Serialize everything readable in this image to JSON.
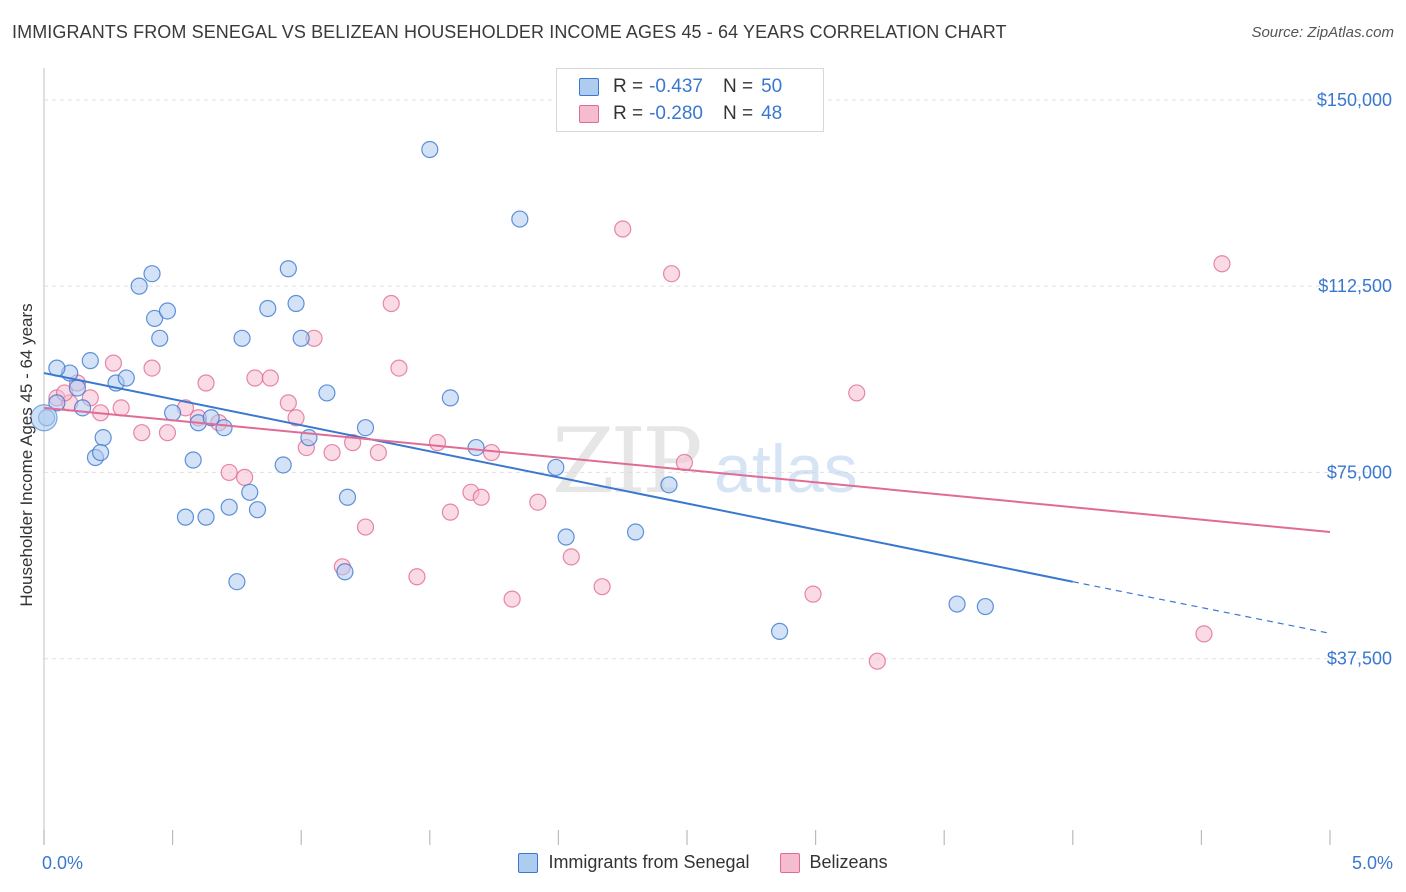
{
  "title": "IMMIGRANTS FROM SENEGAL VS BELIZEAN HOUSEHOLDER INCOME AGES 45 - 64 YEARS CORRELATION CHART",
  "source": "Source: ZipAtlas.com",
  "watermark": {
    "zip": "ZIP",
    "atlas": "atlas"
  },
  "colors": {
    "blue": "#3a78cf",
    "blue_fill": "#aecbf0",
    "pink": "#e06c95",
    "pink_fill": "#f5bcd0",
    "grid": "#e0e0e0",
    "axis_text": "#3a78cf"
  },
  "legend": {
    "r_label": "R =",
    "n_label": "N =",
    "rows": [
      {
        "r": "-0.437",
        "n": "50"
      },
      {
        "r": "-0.280",
        "n": "48"
      }
    ]
  },
  "chart_data": {
    "type": "scatter",
    "xlabel": "",
    "ylabel": "Householder Income Ages 45 - 64 years",
    "x_tick_labels": [
      "0.0%",
      "5.0%"
    ],
    "y_tick_labels": [
      "$150,000",
      "$112,500",
      "$75,000",
      "$37,500"
    ],
    "y_ticks": [
      150000,
      112500,
      75000,
      37500
    ],
    "xlim": [
      0,
      5
    ],
    "ylim": [
      0,
      155000
    ],
    "grid": true,
    "legend_position": "bottom",
    "series": [
      {
        "name": "Immigrants from Senegal",
        "color": "#3a78cf",
        "trend": {
          "x0": 0.0,
          "y0": 95000,
          "x1": 4.0,
          "y1": 53000,
          "dash_to_x": 5.0,
          "dash_to_y": 42600
        },
        "points": [
          [
            0.01,
            86000
          ],
          [
            0.05,
            89000
          ],
          [
            0.1,
            95000
          ],
          [
            0.13,
            92000
          ],
          [
            0.18,
            97500
          ],
          [
            0.2,
            78000
          ],
          [
            0.23,
            82000
          ],
          [
            0.22,
            79000
          ],
          [
            0.28,
            93000
          ],
          [
            0.32,
            94000
          ],
          [
            0.37,
            112500
          ],
          [
            0.42,
            115000
          ],
          [
            0.43,
            106000
          ],
          [
            0.45,
            102000
          ],
          [
            0.48,
            107500
          ],
          [
            0.5,
            87000
          ],
          [
            0.55,
            66000
          ],
          [
            0.58,
            77500
          ],
          [
            0.6,
            85000
          ],
          [
            0.63,
            66000
          ],
          [
            0.65,
            86000
          ],
          [
            0.7,
            84000
          ],
          [
            0.72,
            68000
          ],
          [
            0.75,
            53000
          ],
          [
            0.77,
            102000
          ],
          [
            0.8,
            71000
          ],
          [
            0.83,
            67500
          ],
          [
            0.87,
            108000
          ],
          [
            0.93,
            76500
          ],
          [
            0.95,
            116000
          ],
          [
            0.98,
            109000
          ],
          [
            1.0,
            102000
          ],
          [
            1.03,
            82000
          ],
          [
            1.1,
            91000
          ],
          [
            1.18,
            70000
          ],
          [
            1.25,
            84000
          ],
          [
            1.17,
            55000
          ],
          [
            1.5,
            140000
          ],
          [
            1.58,
            90000
          ],
          [
            1.68,
            80000
          ],
          [
            1.85,
            126000
          ],
          [
            1.99,
            76000
          ],
          [
            2.03,
            62000
          ],
          [
            2.3,
            63000
          ],
          [
            2.43,
            72500
          ],
          [
            2.86,
            43000
          ],
          [
            3.55,
            48500
          ],
          [
            3.66,
            48000
          ],
          [
            0.05,
            96000
          ],
          [
            0.15,
            88000
          ]
        ]
      },
      {
        "name": "Belizeans",
        "color": "#e06c95",
        "trend": {
          "x0": 0.0,
          "y0": 88000,
          "x1": 5.0,
          "y1": 63000
        },
        "points": [
          [
            0.05,
            90000
          ],
          [
            0.1,
            89000
          ],
          [
            0.13,
            93000
          ],
          [
            0.18,
            90000
          ],
          [
            0.22,
            87000
          ],
          [
            0.27,
            97000
          ],
          [
            0.3,
            88000
          ],
          [
            0.38,
            83000
          ],
          [
            0.42,
            96000
          ],
          [
            0.48,
            83000
          ],
          [
            0.55,
            88000
          ],
          [
            0.6,
            86000
          ],
          [
            0.63,
            93000
          ],
          [
            0.68,
            85000
          ],
          [
            0.72,
            75000
          ],
          [
            0.78,
            74000
          ],
          [
            0.82,
            94000
          ],
          [
            0.88,
            94000
          ],
          [
            0.95,
            89000
          ],
          [
            0.98,
            86000
          ],
          [
            1.02,
            80000
          ],
          [
            1.05,
            102000
          ],
          [
            1.12,
            79000
          ],
          [
            1.16,
            56000
          ],
          [
            1.2,
            81000
          ],
          [
            1.25,
            64000
          ],
          [
            1.3,
            79000
          ],
          [
            1.35,
            109000
          ],
          [
            1.38,
            96000
          ],
          [
            1.45,
            54000
          ],
          [
            1.53,
            81000
          ],
          [
            1.58,
            67000
          ],
          [
            1.66,
            71000
          ],
          [
            1.7,
            70000
          ],
          [
            1.74,
            79000
          ],
          [
            1.82,
            49500
          ],
          [
            1.92,
            69000
          ],
          [
            2.05,
            58000
          ],
          [
            2.17,
            52000
          ],
          [
            2.25,
            124000
          ],
          [
            2.44,
            115000
          ],
          [
            2.49,
            77000
          ],
          [
            2.99,
            50500
          ],
          [
            3.16,
            91000
          ],
          [
            3.24,
            37000
          ],
          [
            4.58,
            117000
          ],
          [
            4.51,
            42500
          ],
          [
            0.08,
            91000
          ]
        ]
      }
    ]
  }
}
